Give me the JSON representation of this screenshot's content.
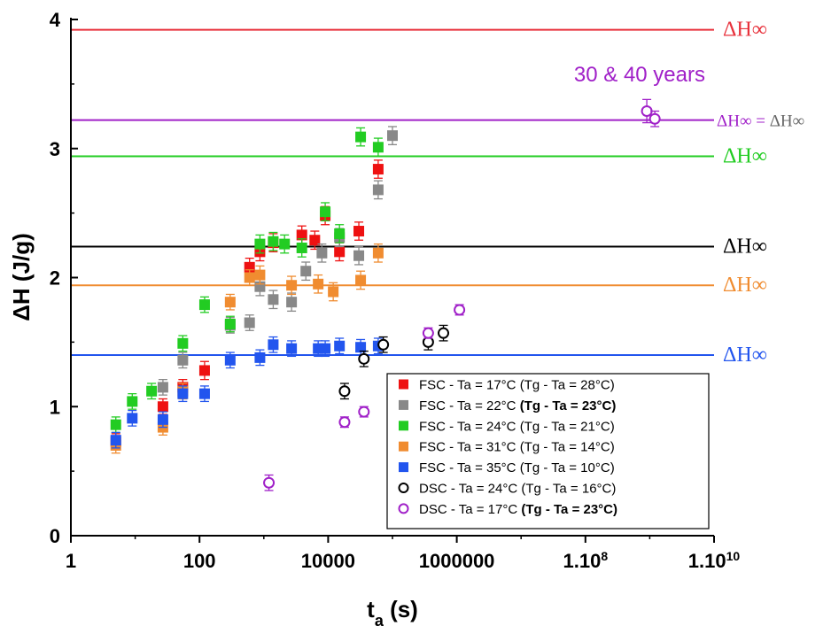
{
  "chart_data": {
    "type": "scatter",
    "x_scale": "log",
    "xlabel": "t",
    "xlabel_sub": "a",
    "xlabel_unit": " (s)",
    "ylabel": "ΔH (J/g)",
    "xlim": [
      1,
      10000000000
    ],
    "ylim": [
      0,
      4
    ],
    "x_ticks": [
      {
        "value": 1,
        "label": "1"
      },
      {
        "value": 100,
        "label": "100"
      },
      {
        "value": 10000,
        "label": "10000"
      },
      {
        "value": 1000000,
        "label": "1000000"
      },
      {
        "value": 100000000,
        "label": "1.10",
        "exp": "8"
      },
      {
        "value": 10000000000,
        "label": "1.10",
        "exp": "10"
      }
    ],
    "y_ticks": [
      {
        "value": 0,
        "label": "0"
      },
      {
        "value": 1,
        "label": "1"
      },
      {
        "value": 2,
        "label": "2"
      },
      {
        "value": 3,
        "label": "3"
      },
      {
        "value": 4,
        "label": "4"
      }
    ],
    "grid": false,
    "legend_position": "bottom-right",
    "reference_lines": [
      {
        "y": 3.92,
        "color": "#e8323c",
        "label": "ΔH∞"
      },
      {
        "y": 3.22,
        "color": "#a020c8",
        "label": "ΔH∞ = ",
        "label_suffix": "ΔH∞",
        "suffix_color": "#666666"
      },
      {
        "y": 2.94,
        "color": "#22cc22",
        "label": "ΔH∞"
      },
      {
        "y": 2.24,
        "color": "#000000",
        "label": "ΔH∞"
      },
      {
        "y": 1.94,
        "color": "#f08c30",
        "label": "ΔH∞"
      },
      {
        "y": 1.4,
        "color": "#2255ee",
        "label": "ΔH∞"
      }
    ],
    "annotation": {
      "text": "30 & 40 years",
      "color": "#a020c8"
    },
    "series": [
      {
        "name": "FSC - Ta = 17°C (Tg - Ta = 28°C)",
        "name_plain": "FSC - Ta = 17°C ",
        "name_rest": "(Tg - Ta = 28°C)",
        "rest_bold": false,
        "color": "#ee1111",
        "marker": "square",
        "x": [
          5,
          27,
          55,
          120,
          600,
          870,
          1400,
          3900,
          6200,
          9000,
          15000,
          30000,
          60000
        ],
        "y": [
          0.73,
          1.0,
          1.15,
          1.28,
          2.08,
          2.2,
          2.27,
          2.33,
          2.29,
          2.48,
          2.2,
          2.36,
          2.84
        ],
        "err": [
          0.06,
          0.06,
          0.06,
          0.07,
          0.07,
          0.07,
          0.07,
          0.07,
          0.07,
          0.07,
          0.07,
          0.07,
          0.07
        ]
      },
      {
        "name": "FSC - Ta = 22°C (Tg - Ta = 23°C)",
        "name_plain": "FSC - Ta = 22°C ",
        "name_rest": "(Tg - Ta = 23°C)",
        "rest_bold": true,
        "color": "#888888",
        "marker": "square",
        "x": [
          27,
          55,
          300,
          600,
          870,
          1400,
          2700,
          4500,
          8000,
          15000,
          30000,
          60000,
          100000
        ],
        "y": [
          1.15,
          1.36,
          1.63,
          1.65,
          1.93,
          1.83,
          1.81,
          2.05,
          2.19,
          2.31,
          2.17,
          2.68,
          3.1
        ],
        "err": [
          0.06,
          0.06,
          0.06,
          0.06,
          0.07,
          0.07,
          0.07,
          0.07,
          0.07,
          0.07,
          0.07,
          0.07,
          0.07
        ]
      },
      {
        "name": "FSC - Ta = 24°C (Tg - Ta = 21°C)",
        "name_plain": "FSC - Ta = 24°C ",
        "name_rest": "(Tg - Ta = 21°C)",
        "rest_bold": false,
        "color": "#22cc22",
        "marker": "square",
        "x": [
          5,
          9,
          18,
          55,
          120,
          300,
          870,
          1400,
          2100,
          3900,
          9000,
          15000,
          32000,
          60000
        ],
        "y": [
          0.86,
          1.04,
          1.12,
          1.49,
          1.79,
          1.64,
          2.26,
          2.28,
          2.26,
          2.23,
          2.51,
          2.34,
          3.09,
          3.01
        ],
        "err": [
          0.06,
          0.06,
          0.06,
          0.06,
          0.06,
          0.06,
          0.07,
          0.07,
          0.07,
          0.07,
          0.07,
          0.07,
          0.07,
          0.07
        ]
      },
      {
        "name": "FSC - Ta = 31°C (Tg - Ta = 14°C)",
        "name_plain": "FSC - Ta = 31°C ",
        "name_rest": "(Tg - Ta = 14°C)",
        "rest_bold": false,
        "color": "#f08c30",
        "marker": "square",
        "x": [
          5,
          27,
          55,
          300,
          600,
          870,
          2700,
          7000,
          12000,
          32000,
          60000
        ],
        "y": [
          0.7,
          0.84,
          1.12,
          1.81,
          2.0,
          2.02,
          1.94,
          1.95,
          1.89,
          1.98,
          2.19
        ],
        "err": [
          0.06,
          0.06,
          0.06,
          0.06,
          0.06,
          0.07,
          0.07,
          0.07,
          0.07,
          0.07,
          0.07
        ]
      },
      {
        "name": "FSC - Ta = 35°C (Tg - Ta = 10°C)",
        "name_plain": "FSC - Ta = 35°C ",
        "name_rest": "(Tg - Ta = 10°C)",
        "rest_bold": false,
        "color": "#2255ee",
        "marker": "square",
        "x": [
          5,
          9,
          27,
          55,
          120,
          300,
          870,
          1400,
          2700,
          7000,
          9000,
          15000,
          32000,
          60000
        ],
        "y": [
          0.74,
          0.91,
          0.9,
          1.1,
          1.1,
          1.36,
          1.38,
          1.48,
          1.45,
          1.45,
          1.45,
          1.47,
          1.46,
          1.47
        ],
        "err": [
          0.06,
          0.06,
          0.06,
          0.06,
          0.06,
          0.06,
          0.06,
          0.06,
          0.06,
          0.06,
          0.06,
          0.06,
          0.06,
          0.06
        ]
      },
      {
        "name": "DSC - Ta = 24°C (Tg - Ta = 16°C)",
        "name_plain": "DSC - Ta = 24°C ",
        "name_rest": "(Tg - Ta = 16°C)",
        "rest_bold": false,
        "color": "#000000",
        "marker": "circle-open",
        "x": [
          18000,
          36000,
          72000,
          360000,
          620000
        ],
        "y": [
          1.12,
          1.37,
          1.48,
          1.5,
          1.57
        ],
        "err": [
          0.06,
          0.06,
          0.06,
          0.06,
          0.06
        ]
      },
      {
        "name": "DSC - Ta = 17°C (Tg - Ta = 23°C)",
        "name_plain": "DSC - Ta = 17°C ",
        "name_rest": "(Tg - Ta = 23°C)",
        "rest_bold": true,
        "color": "#a020c8",
        "marker": "circle-open",
        "x": [
          1200,
          18000,
          36000,
          360000,
          1100000,
          900000000,
          1200000000
        ],
        "y": [
          0.41,
          0.88,
          0.96,
          1.57,
          1.75,
          3.29,
          3.23
        ],
        "err": [
          0.06,
          0.04,
          0.04,
          0.04,
          0.04,
          0.09,
          0.06
        ]
      }
    ]
  }
}
